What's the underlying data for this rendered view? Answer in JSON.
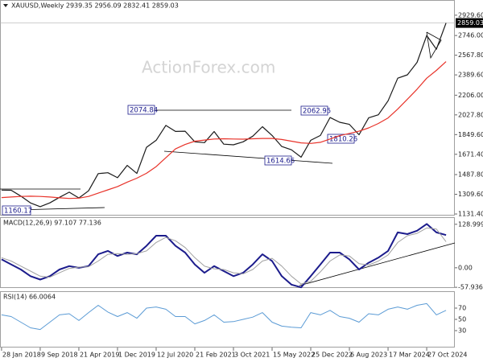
{
  "chart_data": [
    {
      "type": "line",
      "title": "XAUUSD,Weekly  2939.35 2956.09 2832.41 2859.03",
      "watermark": "ActionForex.com",
      "annotations": [
        "2074.84",
        "2062.95",
        "1810.26",
        "1614.66",
        "1160.17"
      ],
      "last_price": 2859.03,
      "x": [
        "2018-01-28",
        "2018-03-25",
        "2018-05-20",
        "2018-07-15",
        "2018-09-09",
        "2018-11-04",
        "2018-12-30",
        "2019-02-24",
        "2019-04-21",
        "2019-06-16",
        "2019-08-11",
        "2019-10-06",
        "2019-12-01",
        "2020-01-26",
        "2020-03-22",
        "2020-05-17",
        "2020-07-12",
        "2020-09-06",
        "2020-11-01",
        "2020-12-27",
        "2021-02-21",
        "2021-04-18",
        "2021-06-13",
        "2021-08-08",
        "2021-10-03",
        "2021-11-28",
        "2022-01-23",
        "2022-03-20",
        "2022-05-15",
        "2022-07-10",
        "2022-09-04",
        "2022-10-30",
        "2022-12-25",
        "2023-02-19",
        "2023-04-16",
        "2023-06-11",
        "2023-08-06",
        "2023-10-01",
        "2023-11-26",
        "2024-01-21",
        "2024-03-17",
        "2024-05-12",
        "2024-07-07",
        "2024-09-01",
        "2024-10-27",
        "2024-12-22",
        "2025-02-16"
      ],
      "xlim": [
        "2018-01-19",
        "2025-04-08"
      ],
      "xticks": [
        {
          "value": "2018-01-28",
          "label": "28 Jan 2018"
        },
        {
          "value": "2018-09-09",
          "label": "9 Sep 2018"
        },
        {
          "value": "2019-04-21",
          "label": "21 Apr 2019"
        },
        {
          "value": "2019-12-01",
          "label": "1 Dec 2019"
        },
        {
          "value": "2020-07-12",
          "label": "12 Jul 2020"
        },
        {
          "value": "2021-02-21",
          "label": "21 Feb 2021"
        },
        {
          "value": "2021-10-03",
          "label": "3 Oct 2021"
        },
        {
          "value": "2022-05-15",
          "label": "15 May 2022"
        },
        {
          "value": "2022-12-25",
          "label": "25 Dec 2022"
        },
        {
          "value": "2023-08-06",
          "label": "6 Aug 2023"
        },
        {
          "value": "2024-03-17",
          "label": "17 Mar 2024"
        },
        {
          "value": "2024-10-27",
          "label": "27 Oct 2024"
        }
      ],
      "ylim": [
        1117,
        3067
      ],
      "yticks": [
        {
          "value": 1131.4,
          "label": "1131.40"
        },
        {
          "value": 1309.6,
          "label": "1309.60"
        },
        {
          "value": 1487.8,
          "label": "1487.80"
        },
        {
          "value": 1671.4,
          "label": "1671.40"
        },
        {
          "value": 1849.6,
          "label": "1849.60"
        },
        {
          "value": 2027.8,
          "label": "2027.80"
        },
        {
          "value": 2206,
          "label": "2206.00"
        },
        {
          "value": 2389.6,
          "label": "2389.60"
        },
        {
          "value": 2567.8,
          "label": "2567.80"
        },
        {
          "value": 2746,
          "label": "2746.00"
        },
        {
          "value": 2929.6,
          "label": "2929.60"
        }
      ],
      "series": [
        {
          "color": "#1a1a1a",
          "width": 1.2,
          "values": [
            1348,
            1346,
            1293,
            1231,
            1198,
            1232,
            1282,
            1329,
            1276,
            1341,
            1497,
            1505,
            1460,
            1571,
            1498,
            1735,
            1798,
            1933,
            1878,
            1880,
            1784,
            1777,
            1877,
            1763,
            1757,
            1784,
            1835,
            1921,
            1842,
            1742,
            1712,
            1645,
            1798,
            1842,
            2004,
            1961,
            1942,
            1848,
            2002,
            2029,
            2155,
            2360,
            2390,
            2503,
            2746,
            2622,
            2859.03
          ]
        },
        {
          "color": "#e8332a",
          "width": 1.2,
          "values": [
            1280,
            1285,
            1290,
            1292,
            1290,
            1285,
            1278,
            1272,
            1275,
            1290,
            1320,
            1350,
            1380,
            1420,
            1455,
            1500,
            1560,
            1640,
            1720,
            1760,
            1790,
            1800,
            1810,
            1812,
            1810,
            1808,
            1812,
            1815,
            1815,
            1805,
            1790,
            1775,
            1770,
            1780,
            1810,
            1840,
            1860,
            1880,
            1910,
            1950,
            2000,
            2080,
            2170,
            2260,
            2360,
            2430,
            2510
          ]
        }
      ]
    },
    {
      "type": "line",
      "title": "MACD(12,26,9) 97.107 77.136",
      "ylim": [
        -60,
        150
      ],
      "yticks": [
        128.999,
        {
          "value": 0,
          "label": "0.00"
        },
        -57.936
      ],
      "series": [
        {
          "color": "#1c1c8c",
          "width": 2,
          "values": [
            25,
            10,
            -5,
            -25,
            -35,
            -25,
            -5,
            5,
            0,
            5,
            40,
            50,
            35,
            45,
            40,
            65,
            95,
            95,
            65,
            45,
            10,
            -15,
            5,
            -10,
            -25,
            -15,
            10,
            40,
            20,
            -25,
            -50,
            -58,
            -25,
            10,
            45,
            45,
            25,
            -5,
            15,
            30,
            50,
            105,
            100,
            110,
            130,
            105,
            97.107
          ]
        },
        {
          "color": "#a0a0a0",
          "width": 1,
          "values": [
            30,
            20,
            5,
            -10,
            -25,
            -28,
            -15,
            -2,
            2,
            3,
            20,
            40,
            42,
            40,
            42,
            50,
            75,
            90,
            80,
            60,
            30,
            5,
            -3,
            -5,
            -15,
            -18,
            -5,
            20,
            28,
            5,
            -25,
            -48,
            -40,
            -12,
            20,
            38,
            35,
            12,
            8,
            20,
            38,
            75,
            95,
            102,
            118,
            115,
            77.136
          ]
        }
      ]
    },
    {
      "type": "line",
      "title": "RSI(14) 66.0064",
      "ylim": [
        0,
        100
      ],
      "yticks": [
        70,
        50,
        30
      ],
      "series": [
        {
          "color": "#5b9bd5",
          "width": 1,
          "values": [
            58,
            55,
            45,
            35,
            32,
            45,
            58,
            60,
            48,
            62,
            75,
            63,
            55,
            62,
            52,
            70,
            72,
            68,
            55,
            55,
            42,
            48,
            58,
            45,
            46,
            50,
            54,
            62,
            45,
            38,
            36,
            35,
            62,
            58,
            66,
            55,
            52,
            45,
            60,
            58,
            68,
            72,
            68,
            75,
            78,
            58,
            66.0064
          ]
        }
      ]
    }
  ]
}
